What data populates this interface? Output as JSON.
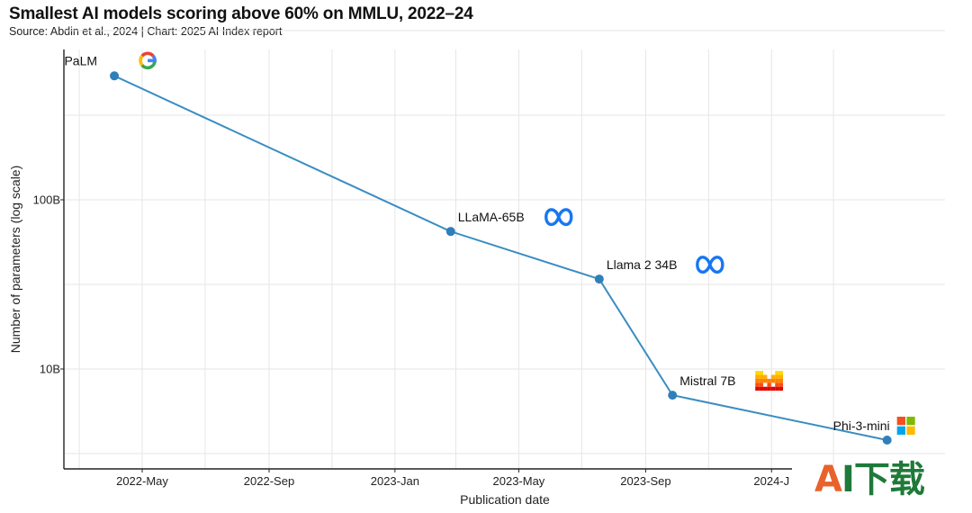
{
  "title": "Smallest AI models scoring above 60% on MMLU, 2022–24",
  "subtitle": "Source: Abdin et al., 2024 | Chart: 2025 AI Index report",
  "watermark": {
    "first": "A",
    "rest": "I下载"
  },
  "colors": {
    "line": "#3a8dc2",
    "point": "#2f7fba",
    "grid": "#e6e6e6"
  },
  "chart_data": {
    "type": "line",
    "xlabel": "Publication date",
    "ylabel": "Number of parameters (log scale)",
    "y_scale": "log",
    "grid": true,
    "xlim": [
      "2022-03-01",
      "2024-01-15"
    ],
    "ylim": [
      2500000000,
      1000000000000
    ],
    "x_ticks": [
      {
        "date": "2022-05-01",
        "label": "2022-May"
      },
      {
        "date": "2022-09-01",
        "label": "2022-Sep"
      },
      {
        "date": "2023-01-01",
        "label": "2023-Jan"
      },
      {
        "date": "2023-05-01",
        "label": "2023-May"
      },
      {
        "date": "2023-09-01",
        "label": "2023-Sep"
      },
      {
        "date": "2024-01-01",
        "label": "2024-J"
      }
    ],
    "y_ticks": [
      {
        "value": 10000000000,
        "label": "10B"
      },
      {
        "value": 100000000000,
        "label": "100B"
      }
    ],
    "points": [
      {
        "date": "2022-04-04",
        "params": 540000000000,
        "label": "PaLM",
        "icon": "google-icon"
      },
      {
        "date": "2023-02-24",
        "params": 65000000000,
        "label": "LLaMA-65B",
        "icon": "meta-icon"
      },
      {
        "date": "2023-07-18",
        "params": 34000000000,
        "label": "Llama 2 34B",
        "icon": "meta-icon"
      },
      {
        "date": "2023-09-27",
        "params": 7000000000,
        "label": "Mistral 7B",
        "icon": "mistral-icon"
      },
      {
        "date": "2024-04-22",
        "params": 3800000000,
        "label": "Phi-3-mini",
        "icon": "microsoft-icon"
      }
    ]
  }
}
